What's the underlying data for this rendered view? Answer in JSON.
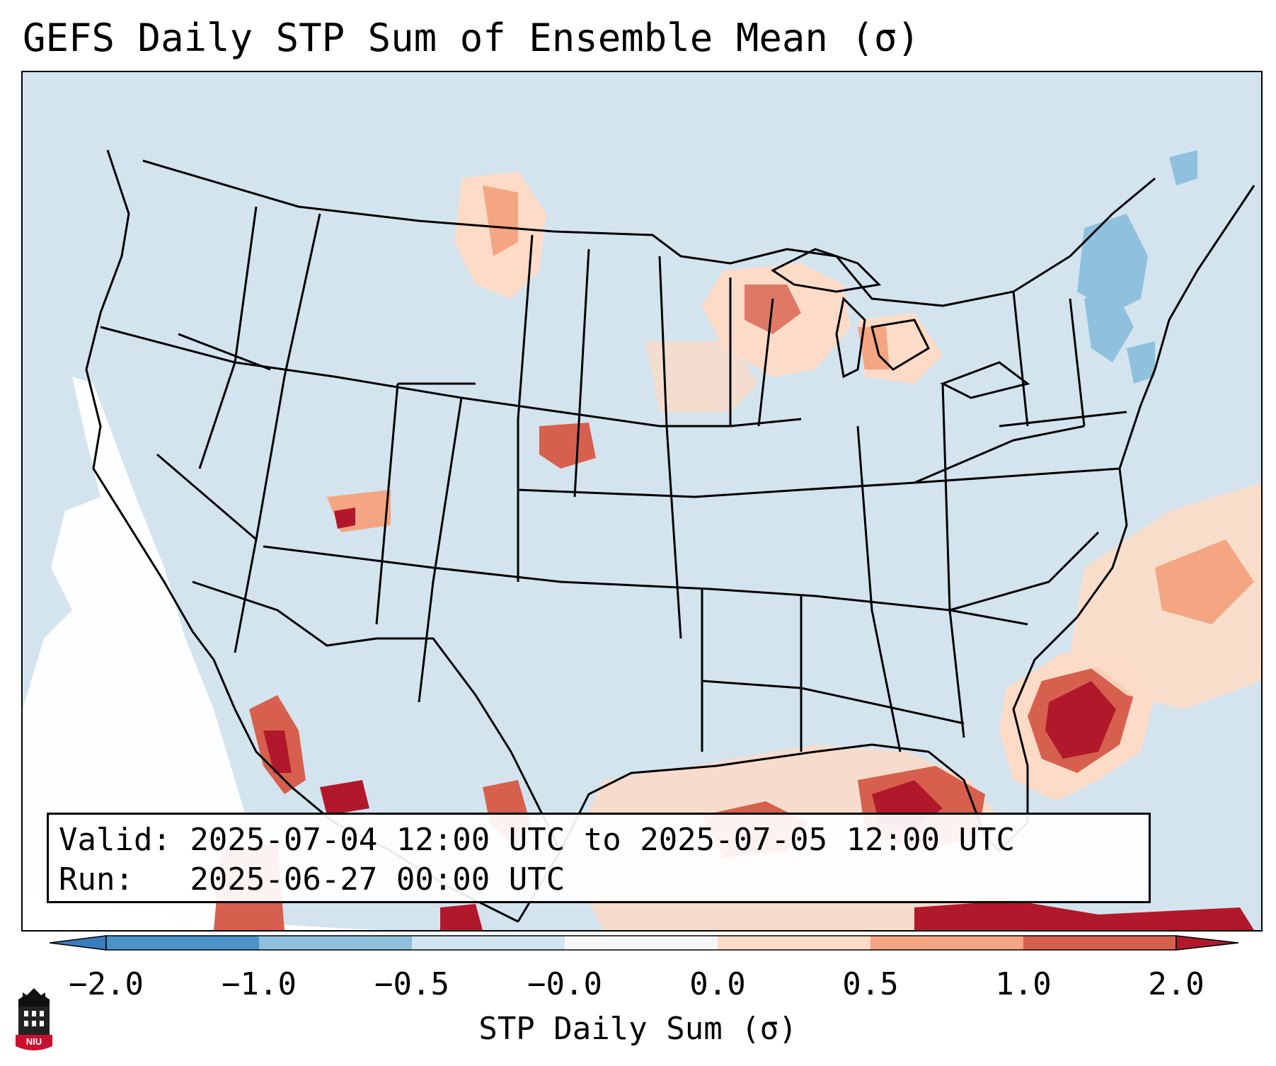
{
  "title": "GEFS Daily STP Sum of Ensemble Mean (σ)",
  "info": {
    "valid_line": "Valid: 2025-07-04 12:00 UTC to 2025-07-05 12:00 UTC",
    "run_line": "Run:   2025-06-27 00:00 UTC"
  },
  "colorbar": {
    "label": "STP Daily Sum (σ)",
    "ticks": [
      "−2.0",
      "−1.0",
      "−0.5",
      "−0.0",
      "0.0",
      "0.5",
      "1.0",
      "2.0"
    ],
    "colors": {
      "below": "#3a7dbf",
      "b1": "#4b93c8",
      "b2": "#8fc1de",
      "b3": "#d1e5f0",
      "b4": "#f7f7f7",
      "b5": "#fddbc7",
      "b6": "#f4a582",
      "b7": "#d6604d",
      "above": "#b2182b"
    }
  },
  "map": {
    "colors": {
      "ocean_neutral": "#d3e4ef",
      "missing": "#ffffff",
      "light_pos": "#fddbc7",
      "mid_pos": "#f4a582",
      "high_pos": "#d6604d",
      "max_pos": "#b2182b",
      "light_neg": "#8fc1de"
    }
  },
  "logo": {
    "text": "NIU"
  }
}
